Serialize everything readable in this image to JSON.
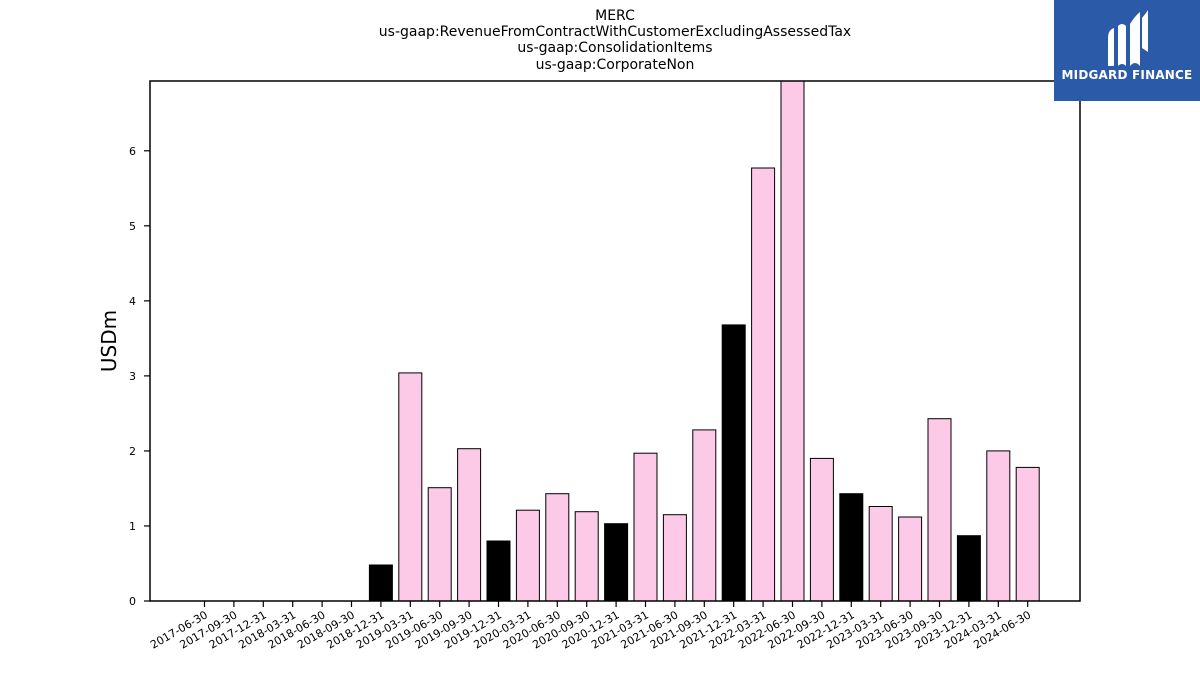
{
  "brand": {
    "name": "MIDGARD FINANCE",
    "color": "#2b5aa9",
    "icon": "midgard-logo-icon"
  },
  "chart_data": {
    "type": "bar",
    "title_lines": [
      "MERC",
      "us-gaap:RevenueFromContractWithCustomerExcludingAssessedTax",
      "us-gaap:ConsolidationItems",
      "us-gaap:CorporateNon"
    ],
    "ylabel": "USDm",
    "xlabel": "",
    "ylim": [
      0,
      6.93
    ],
    "yticks": [
      0,
      1,
      2,
      3,
      4,
      5,
      6
    ],
    "grid": false,
    "colors": {
      "quarter": "#fccae6",
      "year_end": "#000000",
      "edge": "#000000"
    },
    "categories": [
      "2017-06-30",
      "2017-09-30",
      "2017-12-31",
      "2018-03-31",
      "2018-06-30",
      "2018-09-30",
      "2018-12-31",
      "2019-03-31",
      "2019-06-30",
      "2019-09-30",
      "2019-12-31",
      "2020-03-31",
      "2020-06-30",
      "2020-09-30",
      "2020-12-31",
      "2021-03-31",
      "2021-06-30",
      "2021-09-30",
      "2021-12-31",
      "2022-03-31",
      "2022-06-30",
      "2022-09-30",
      "2022-12-31",
      "2023-03-31",
      "2023-06-30",
      "2023-09-30",
      "2023-12-31",
      "2024-03-31",
      "2024-06-30"
    ],
    "values": [
      0,
      0,
      0,
      0,
      0,
      0,
      0.48,
      3.04,
      1.51,
      2.03,
      0.8,
      1.21,
      1.43,
      1.19,
      1.03,
      1.97,
      1.15,
      2.28,
      3.68,
      5.77,
      6.93,
      1.9,
      1.43,
      1.26,
      1.12,
      2.43,
      0.87,
      2.0,
      1.78
    ],
    "year_end": [
      false,
      false,
      false,
      false,
      false,
      false,
      true,
      false,
      false,
      false,
      true,
      false,
      false,
      false,
      true,
      false,
      false,
      false,
      true,
      false,
      false,
      false,
      true,
      false,
      false,
      false,
      true,
      false,
      false
    ]
  }
}
